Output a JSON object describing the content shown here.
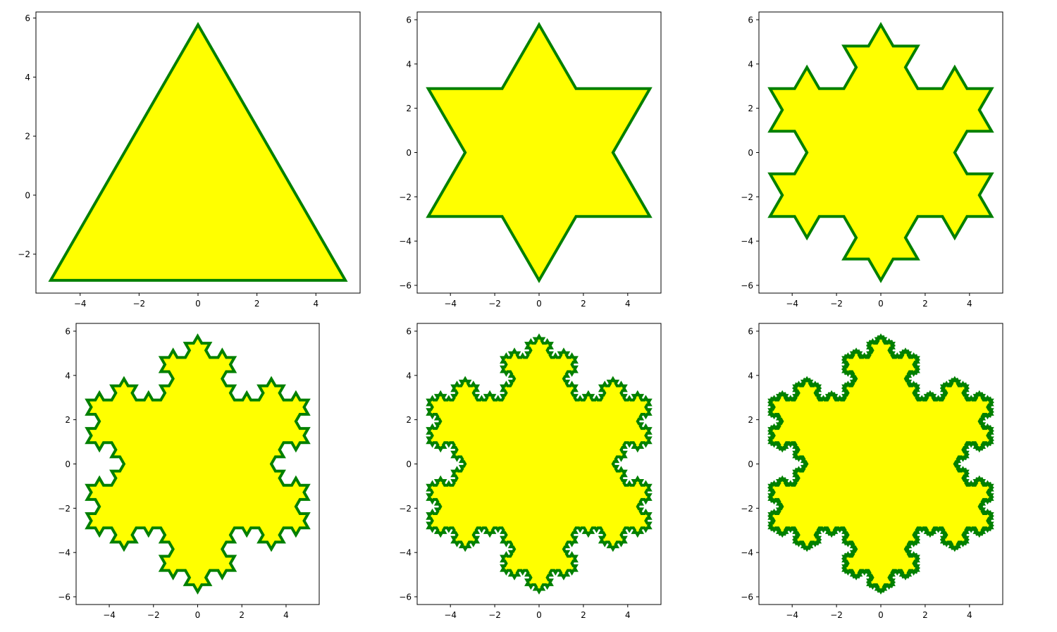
{
  "figure": {
    "fill_color": "#ffff00",
    "edge_color": "#008000"
  },
  "chart_data": [
    {
      "type": "area",
      "title": "",
      "xlabel": "",
      "ylabel": "",
      "koch_iterations": 0,
      "shape_vertices": [
        [
          5,
          -2.887
        ],
        [
          0,
          5.774
        ],
        [
          -5,
          -2.887
        ]
      ],
      "xlim": [
        -5.5,
        5.5
      ],
      "ylim": [
        -3.319,
        6.206
      ],
      "xticks": [
        -4,
        -2,
        0,
        2,
        4
      ],
      "yticks": [
        -2,
        0,
        2,
        4,
        6
      ],
      "xtick_labels": [
        "−4",
        "−2",
        "0",
        "2",
        "4"
      ],
      "ytick_labels": [
        "−2",
        "0",
        "2",
        "4",
        "6"
      ],
      "grid": false,
      "legend": "none"
    },
    {
      "type": "area",
      "title": "",
      "xlabel": "",
      "ylabel": "",
      "koch_iterations": 1,
      "shape_vertices": [
        [
          5,
          -2.887
        ],
        [
          0,
          5.774
        ],
        [
          -5,
          -2.887
        ]
      ],
      "xlim": [
        -5.5,
        5.5
      ],
      "ylim": [
        -6.35,
        6.35
      ],
      "xticks": [
        -4,
        -2,
        0,
        2,
        4
      ],
      "yticks": [
        -6,
        -4,
        -2,
        0,
        2,
        4,
        6
      ],
      "xtick_labels": [
        "−4",
        "−2",
        "0",
        "2",
        "4"
      ],
      "ytick_labels": [
        "−6",
        "−4",
        "−2",
        "0",
        "2",
        "4",
        "6"
      ],
      "grid": false,
      "legend": "none"
    },
    {
      "type": "area",
      "title": "",
      "xlabel": "",
      "ylabel": "",
      "koch_iterations": 2,
      "shape_vertices": [
        [
          5,
          -2.887
        ],
        [
          0,
          5.774
        ],
        [
          -5,
          -2.887
        ]
      ],
      "xlim": [
        -5.5,
        5.5
      ],
      "ylim": [
        -6.35,
        6.35
      ],
      "xticks": [
        -4,
        -2,
        0,
        2,
        4
      ],
      "yticks": [
        -6,
        -4,
        -2,
        0,
        2,
        4,
        6
      ],
      "xtick_labels": [
        "−4",
        "−2",
        "0",
        "2",
        "4"
      ],
      "ytick_labels": [
        "−6",
        "−4",
        "−2",
        "0",
        "2",
        "4",
        "6"
      ],
      "grid": false,
      "legend": "none"
    },
    {
      "type": "area",
      "title": "",
      "xlabel": "",
      "ylabel": "",
      "koch_iterations": 3,
      "shape_vertices": [
        [
          5,
          -2.887
        ],
        [
          0,
          5.774
        ],
        [
          -5,
          -2.887
        ]
      ],
      "xlim": [
        -5.5,
        5.5
      ],
      "ylim": [
        -6.35,
        6.35
      ],
      "xticks": [
        -4,
        -2,
        0,
        2,
        4
      ],
      "yticks": [
        -6,
        -4,
        -2,
        0,
        2,
        4,
        6
      ],
      "xtick_labels": [
        "−4",
        "−2",
        "0",
        "2",
        "4"
      ],
      "ytick_labels": [
        "−6",
        "−4",
        "−2",
        "0",
        "2",
        "4",
        "6"
      ],
      "grid": false,
      "legend": "none"
    },
    {
      "type": "area",
      "title": "",
      "xlabel": "",
      "ylabel": "",
      "koch_iterations": 4,
      "shape_vertices": [
        [
          5,
          -2.887
        ],
        [
          0,
          5.774
        ],
        [
          -5,
          -2.887
        ]
      ],
      "xlim": [
        -5.5,
        5.5
      ],
      "ylim": [
        -6.35,
        6.35
      ],
      "xticks": [
        -4,
        -2,
        0,
        2,
        4
      ],
      "yticks": [
        -6,
        -4,
        -2,
        0,
        2,
        4,
        6
      ],
      "xtick_labels": [
        "−4",
        "−2",
        "0",
        "2",
        "4"
      ],
      "ytick_labels": [
        "−6",
        "−4",
        "−2",
        "0",
        "2",
        "4",
        "6"
      ],
      "grid": false,
      "legend": "none"
    },
    {
      "type": "area",
      "title": "",
      "xlabel": "",
      "ylabel": "",
      "koch_iterations": 5,
      "shape_vertices": [
        [
          5,
          -2.887
        ],
        [
          0,
          5.774
        ],
        [
          -5,
          -2.887
        ]
      ],
      "xlim": [
        -5.5,
        5.5
      ],
      "ylim": [
        -6.35,
        6.35
      ],
      "xticks": [
        -4,
        -2,
        0,
        2,
        4
      ],
      "yticks": [
        -6,
        -4,
        -2,
        0,
        2,
        4,
        6
      ],
      "xtick_labels": [
        "−4",
        "−2",
        "0",
        "2",
        "4"
      ],
      "ytick_labels": [
        "−6",
        "−4",
        "−2",
        "0",
        "2",
        "4",
        "6"
      ],
      "grid": false,
      "legend": "none"
    }
  ]
}
